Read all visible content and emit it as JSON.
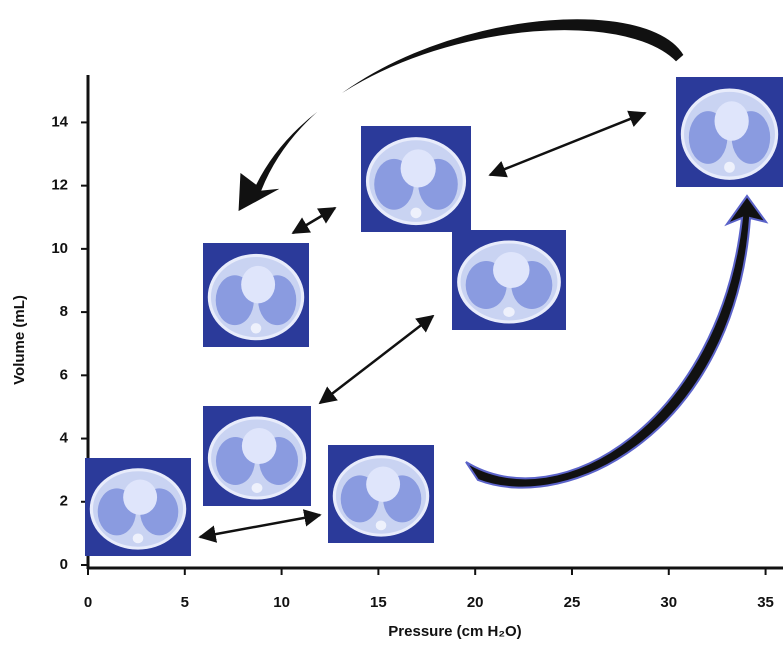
{
  "chart_data": {
    "type": "scatter",
    "x_label": "Pressure (cm H₂O)",
    "y_label": "Volume (mL)",
    "xlim": [
      0,
      35.9
    ],
    "ylim": [
      0,
      15.5
    ],
    "xticks": [
      0,
      5,
      10,
      15,
      20,
      25,
      30,
      35
    ],
    "yticks": [
      0,
      2,
      4,
      6,
      8,
      10,
      12,
      14
    ]
  }
}
